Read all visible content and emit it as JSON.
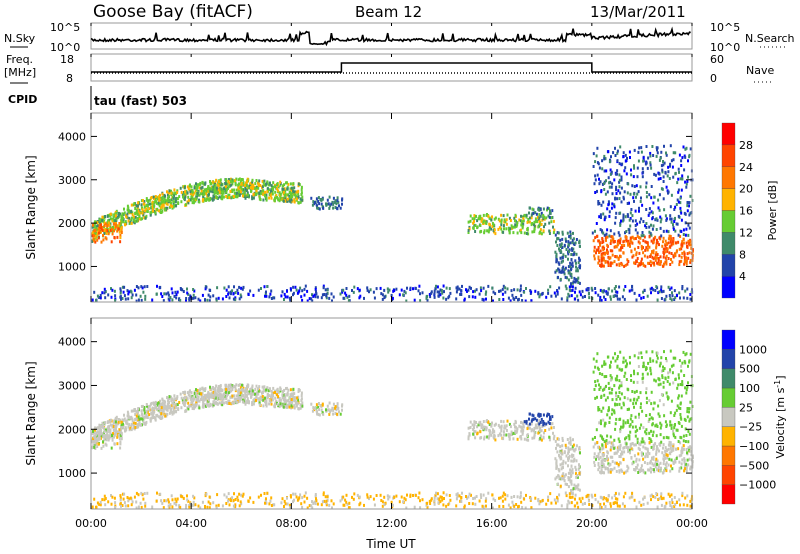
{
  "header": {
    "station": "Goose Bay (fitACF)",
    "beam": "Beam 12",
    "date": "13/Mar/2011"
  },
  "noise_panel": {
    "left_label": "N.Sky",
    "right_label": "N.Search",
    "left_ticks": [
      "10^5",
      "10^0"
    ],
    "right_ticks": [
      "10^5",
      "10^0"
    ]
  },
  "freq_panel": {
    "left_label_1": "Freq.",
    "left_label_2": "[MHz]",
    "right_label": "Nave",
    "left_ticks": [
      "18",
      "8"
    ],
    "right_ticks": [
      "60",
      "0"
    ]
  },
  "cpid": {
    "label": "CPID",
    "value": "tau (fast) 503"
  },
  "colors": {
    "power": [
      "#0000ff",
      "#2244aa",
      "#3f8a6a",
      "#66cc33",
      "#ffb300",
      "#ff7700",
      "#ff4400",
      "#ff0000"
    ],
    "velocity": [
      "#ff0000",
      "#ff4400",
      "#ff7700",
      "#ffb300",
      "#c8c8c0",
      "#66cc33",
      "#3f8a6a",
      "#2244aa",
      "#0000ff"
    ]
  },
  "chart_data": [
    {
      "type": "heatmap",
      "title": "Power",
      "xlabel": "Time UT",
      "ylabel": "Slant Range [km]",
      "xlim": [
        0,
        24
      ],
      "ylim": [
        180,
        4540
      ],
      "x_ticks": [
        "00:00",
        "04:00",
        "08:00",
        "12:00",
        "16:00",
        "20:00",
        "00:00"
      ],
      "y_ticks": [
        "1000",
        "2000",
        "3000",
        "4000"
      ],
      "colorbar": {
        "label": "Power [dB]",
        "ticks": [
          "28",
          "24",
          "20",
          "16",
          "12",
          "8",
          "4"
        ],
        "range": [
          0,
          32
        ]
      },
      "echo_regions": [
        {
          "t0": 0,
          "t1": 8.4,
          "r0": 1750,
          "r1": 2750,
          "power": 14,
          "velocity": 0,
          "desc": "arc"
        },
        {
          "t0": 0,
          "t1": 1.2,
          "r0": 1550,
          "r1": 2000,
          "power": 22,
          "velocity": 0
        },
        {
          "t0": 8.6,
          "t1": 10,
          "r0": 2300,
          "r1": 2600,
          "power": 8,
          "velocity": 0
        },
        {
          "t0": 15,
          "t1": 18.5,
          "r0": 1750,
          "r1": 2200,
          "power": 14,
          "velocity": 0
        },
        {
          "t0": 17.2,
          "t1": 18.4,
          "r0": 2100,
          "r1": 2350,
          "power": 10,
          "velocity": 700
        },
        {
          "t0": 18.5,
          "t1": 19.5,
          "r0": 600,
          "r1": 1800,
          "power": 8,
          "velocity": 0
        },
        {
          "t0": 20,
          "t1": 24,
          "r0": 1000,
          "r1": 1700,
          "power": 24,
          "velocity": 0
        },
        {
          "t0": 20,
          "t1": 24,
          "r0": 1700,
          "r1": 3800,
          "power": 6,
          "velocity": 50
        },
        {
          "t0": 0,
          "t1": 24,
          "r0": 200,
          "r1": 550,
          "power": 6,
          "velocity": -30
        }
      ]
    },
    {
      "type": "heatmap",
      "title": "Velocity",
      "xlabel": "Time UT",
      "ylabel": "Slant Range [km]",
      "xlim": [
        0,
        24
      ],
      "ylim": [
        180,
        4540
      ],
      "x_ticks": [
        "00:00",
        "04:00",
        "08:00",
        "12:00",
        "16:00",
        "20:00",
        "00:00"
      ],
      "y_ticks": [
        "1000",
        "2000",
        "3000",
        "4000"
      ],
      "colorbar": {
        "label": "Velocity [m s",
        "label_sup": "-1",
        "label_end": "]",
        "ticks": [
          "1000",
          "500",
          "100",
          "25",
          "−25",
          "−100",
          "−500",
          "−1000"
        ]
      }
    }
  ]
}
